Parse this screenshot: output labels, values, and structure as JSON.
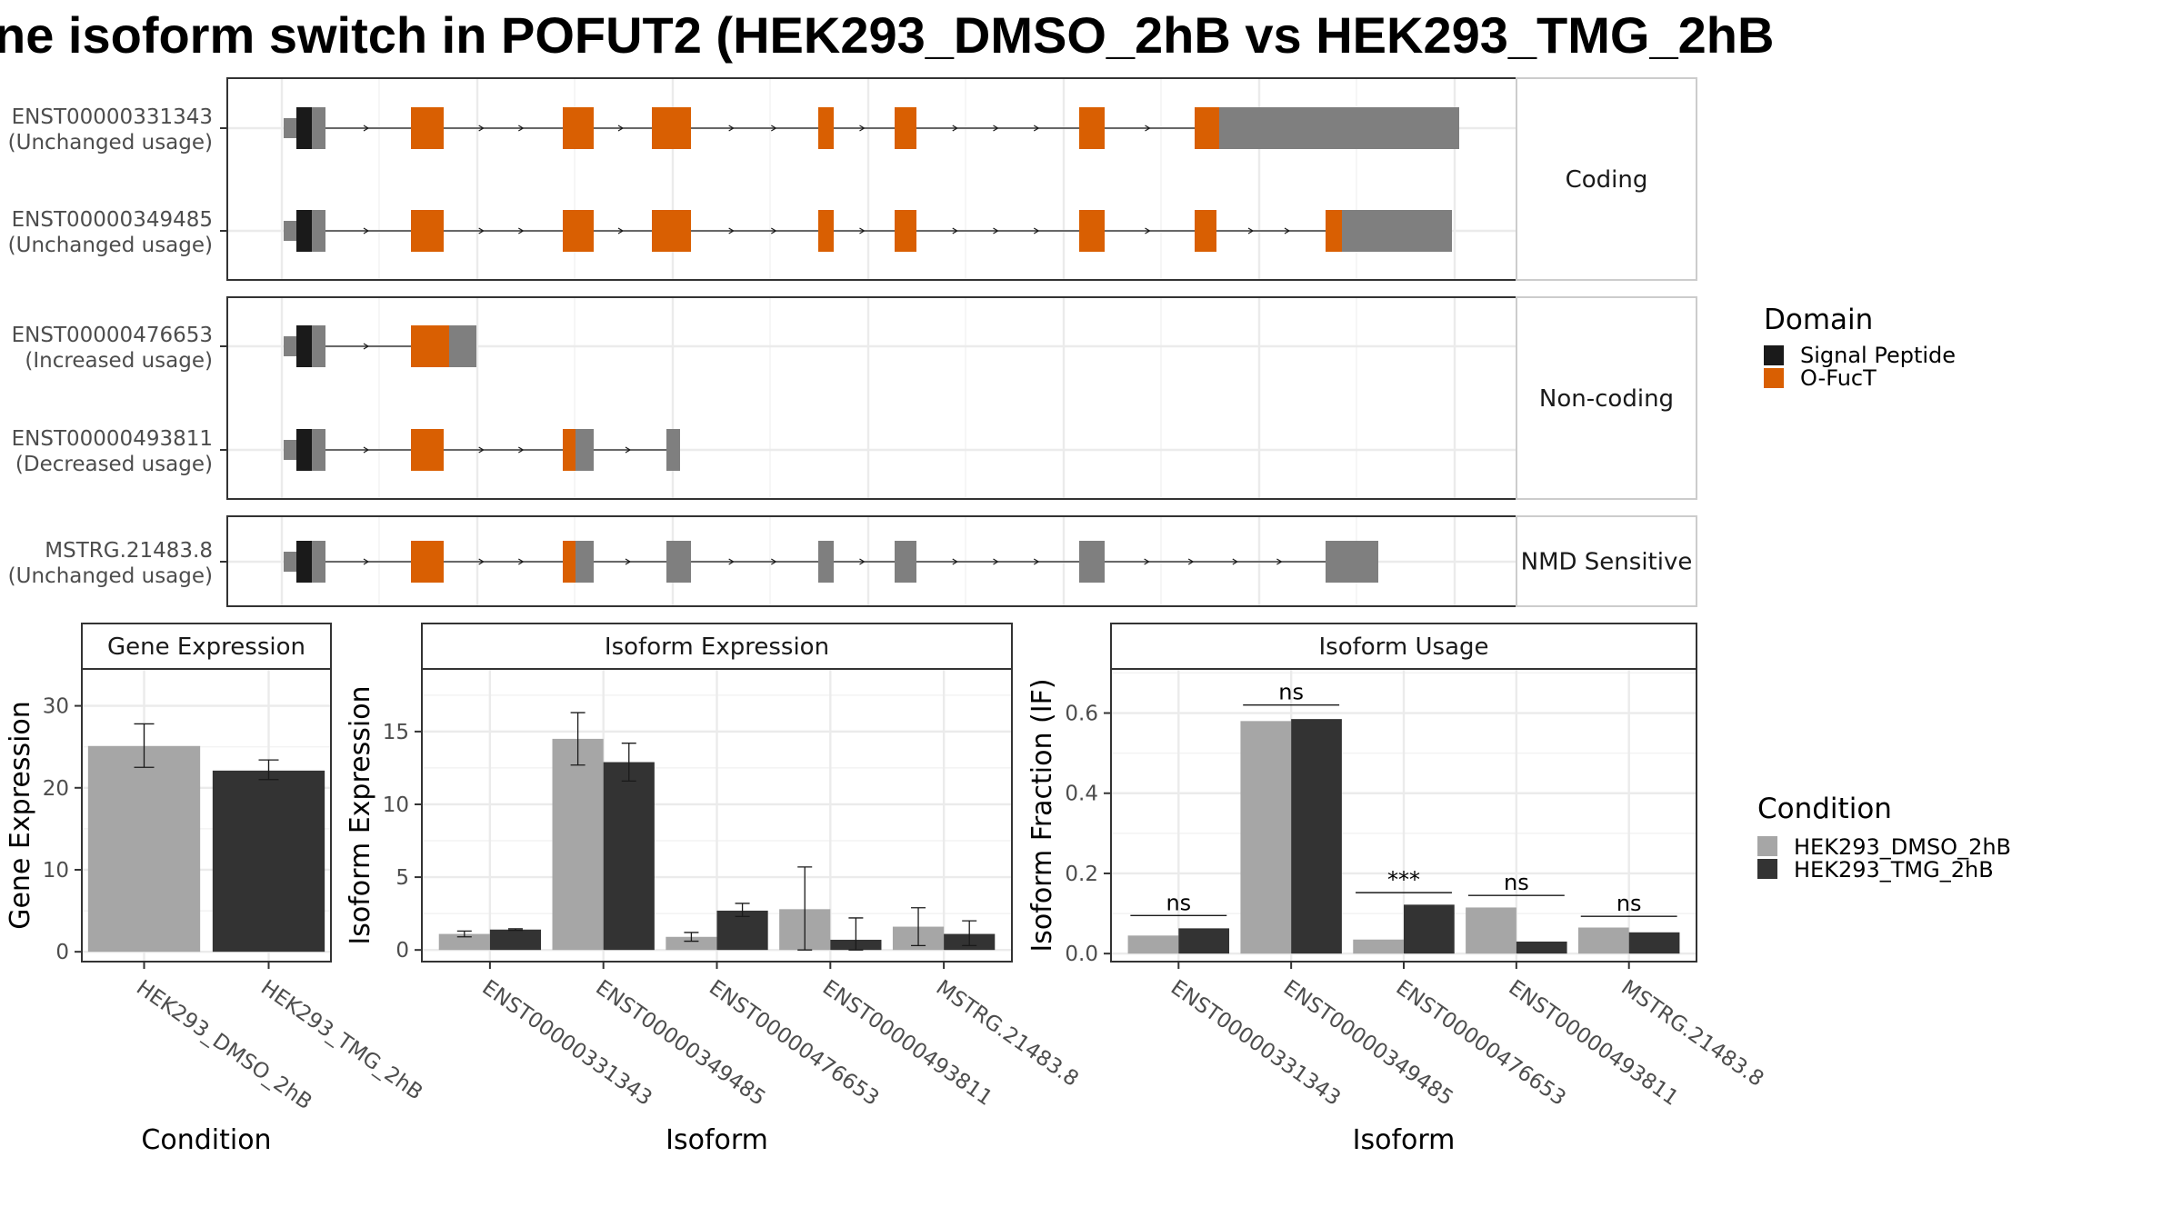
{
  "chart_data": {
    "title": "ne isoform switch in POFUT2 (HEK293_DMSO_2hB vs HEK293_TMG_2hB",
    "type": "composite",
    "colors": {
      "signal_peptide": "#1a1a1a",
      "ofuct": "#d95f02",
      "exon": "#7f7f7f",
      "dmso": "#a6a6a6",
      "tmg": "#333333",
      "grid": "#ebebeb"
    },
    "transcript_plot": {
      "groups": [
        {
          "label": "Coding",
          "transcripts": [
            {
              "id": "ENST00000331343",
              "usage": "(Unchanged usage)"
            },
            {
              "id": "ENST00000349485",
              "usage": "(Unchanged usage)"
            }
          ]
        },
        {
          "label": "Non-coding",
          "transcripts": [
            {
              "id": "ENST00000476653",
              "usage": "(Increased usage)"
            },
            {
              "id": "ENST00000493811",
              "usage": "(Decreased usage)"
            }
          ]
        },
        {
          "label": "NMD Sensitive",
          "transcripts": [
            {
              "id": "MSTRG.21483.8",
              "usage": "(Unchanged usage)"
            }
          ]
        }
      ],
      "legend": {
        "title": "Domain",
        "entries": [
          {
            "label": "Signal Peptide",
            "color": "#1a1a1a"
          },
          {
            "label": "O-FucT",
            "color": "#d95f02"
          }
        ]
      }
    },
    "condition_legend": {
      "title": "Condition",
      "entries": [
        {
          "label": "HEK293_DMSO_2hB",
          "color": "#a6a6a6"
        },
        {
          "label": "HEK293_TMG_2hB",
          "color": "#333333"
        }
      ]
    },
    "gene_expression": {
      "type": "bar",
      "strip": "Gene Expression",
      "xlabel": "Condition",
      "ylabel": "Gene Expression",
      "categories": [
        "HEK293_DMSO_2hB",
        "HEK293_TMG_2hB"
      ],
      "values": [
        25.1,
        22.1
      ],
      "err_low": [
        22.5,
        21.0
      ],
      "err_high": [
        27.8,
        23.4
      ],
      "ylim": [
        -1.2,
        34.5
      ],
      "yticks": [
        0,
        10,
        20,
        30
      ]
    },
    "isoform_expression": {
      "type": "bar",
      "strip": "Isoform Expression",
      "xlabel": "Isoform",
      "ylabel": "Isoform Expression",
      "categories": [
        "ENST00000331343",
        "ENST00000349485",
        "ENST00000476653",
        "ENST00000493811",
        "MSTRG.21483.8"
      ],
      "series": [
        {
          "name": "HEK293_DMSO_2hB",
          "values": [
            1.1,
            14.5,
            0.9,
            2.8,
            1.6
          ],
          "err_low": [
            0.9,
            12.7,
            0.6,
            0.0,
            0.3
          ],
          "err_high": [
            1.3,
            16.3,
            1.2,
            5.7,
            2.9
          ]
        },
        {
          "name": "HEK293_TMG_2hB",
          "values": [
            1.4,
            12.9,
            2.7,
            0.7,
            1.1
          ],
          "err_low": [
            1.35,
            11.6,
            2.3,
            0.0,
            0.3
          ],
          "err_high": [
            1.45,
            14.2,
            3.2,
            2.2,
            2.0
          ]
        }
      ],
      "ylim": [
        -0.8,
        19.3
      ],
      "yticks": [
        0,
        5,
        10,
        15
      ]
    },
    "isoform_usage": {
      "type": "bar",
      "strip": "Isoform Usage",
      "xlabel": "Isoform",
      "ylabel": "Isoform Fraction (IF)",
      "categories": [
        "ENST00000331343",
        "ENST00000349485",
        "ENST00000476653",
        "ENST00000493811",
        "MSTRG.21483.8"
      ],
      "series": [
        {
          "name": "HEK293_DMSO_2hB",
          "values": [
            0.045,
            0.58,
            0.035,
            0.115,
            0.065
          ]
        },
        {
          "name": "HEK293_TMG_2hB",
          "values": [
            0.063,
            0.585,
            0.122,
            0.03,
            0.053
          ]
        }
      ],
      "significance": [
        "ns",
        "ns",
        "***",
        "ns",
        "ns"
      ],
      "sig_y": [
        0.095,
        0.62,
        0.152,
        0.145,
        0.093
      ],
      "ylim": [
        -0.02,
        0.71
      ],
      "yticks": [
        0.0,
        0.2,
        0.4,
        0.6
      ],
      "ytick_labels": [
        "0.0",
        "0.2",
        "0.4",
        "0.6"
      ]
    }
  }
}
